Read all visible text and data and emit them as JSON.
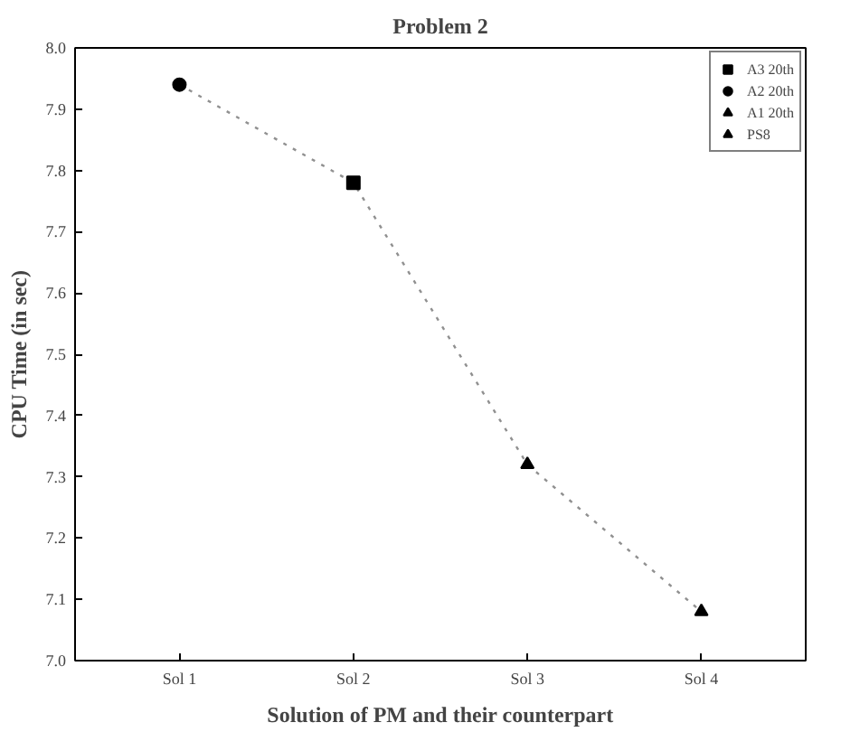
{
  "chart_data": {
    "type": "scatter",
    "title": "Problem 2",
    "xlabel": "Solution of PM and their counterpart",
    "ylabel": "CPU Time (in sec)",
    "categories": [
      "Sol 1",
      "Sol 2",
      "Sol 3",
      "Sol 4"
    ],
    "ylim": [
      7.0,
      8.0
    ],
    "yticks": [
      {
        "value": 7.0,
        "label": "7.0"
      },
      7.1,
      7.2,
      7.3,
      7.4,
      7.5,
      7.6,
      7.7,
      7.8,
      7.9,
      {
        "value": 8.0,
        "label": "8.0"
      }
    ],
    "grid": false,
    "legend": "top right",
    "series": [
      {
        "type": "line",
        "color": "#909090",
        "line_style": "dotted",
        "marker": "none",
        "values": [
          7.94,
          7.78,
          7.32,
          7.08
        ]
      },
      {
        "name": "A3 20th",
        "color": "#000000",
        "marker": "square",
        "values": [
          null,
          7.78,
          null,
          null
        ]
      },
      {
        "name": "A2 20th",
        "color": "#000000",
        "marker": "circle",
        "values": [
          7.94,
          null,
          null,
          null
        ]
      },
      {
        "name": "A1 20th",
        "color": "#000000",
        "marker": "triangle",
        "values": [
          null,
          null,
          7.32,
          null
        ]
      },
      {
        "name": "PS8",
        "color": "#000000",
        "marker": "triangle",
        "values": [
          null,
          null,
          null,
          7.08
        ]
      }
    ]
  }
}
